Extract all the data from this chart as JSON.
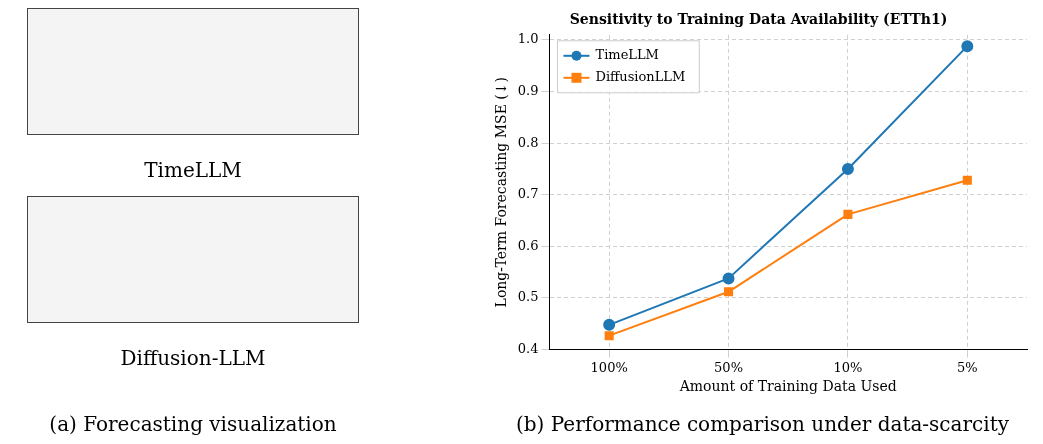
{
  "chart_data": [
    {
      "type": "other",
      "annotations": [
        "TimeLLM",
        "Diffusion-LLM",
        "(a) Forecasting visualization"
      ]
    },
    {
      "type": "line",
      "title": "Sensitivity to Training Data Availability (ETTh1)",
      "xlabel": "Amount of Training Data Used",
      "ylabel": "Long-Term Forecasting MSE (↓)",
      "categories": [
        "100%",
        "50%",
        "10%",
        "5%"
      ],
      "series": [
        {
          "name": "TimeLLM",
          "color": "#1f77b4",
          "marker": "circle",
          "values": [
            0.448,
            0.538,
            0.75,
            0.988
          ]
        },
        {
          "name": "DiffusionLLM",
          "color": "#ff7f0e",
          "marker": "square",
          "values": [
            0.427,
            0.512,
            0.662,
            0.728
          ]
        }
      ],
      "ylim": [
        0.4,
        1.01
      ],
      "yticks": [
        0.4,
        0.5,
        0.6,
        0.7,
        0.8,
        0.9,
        {
          "value": 1.0,
          "label": "1.0"
        }
      ],
      "grid": true,
      "legend": "top left",
      "line_style": "solid",
      "annotations": [
        "(b) Performance comparison under data-scarcity"
      ]
    }
  ]
}
